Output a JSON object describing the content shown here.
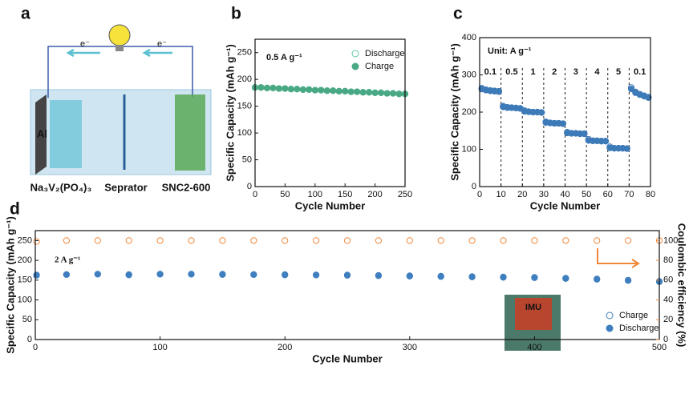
{
  "diagram": {
    "panel_label": "a",
    "electron_left": "e⁻",
    "electron_right": "e⁻",
    "collector": "Al",
    "cathode": "Na₃V₂(PO₄)₃",
    "separator": "Seprator",
    "anode": "SNC2-600"
  },
  "chart_data": [
    {
      "type": "scatter",
      "panel_label": "b",
      "note": "0.5 A g⁻¹",
      "x_label": "Cycle Number",
      "y_label": "Specific Capacity (mAh g⁻¹)",
      "xlim": [
        0,
        250
      ],
      "xticks": [
        0,
        50,
        100,
        150,
        200,
        250
      ],
      "ylim": [
        0,
        275
      ],
      "yticks": [
        0,
        50,
        100,
        150,
        200,
        250
      ],
      "legend": "upper right",
      "x": [
        0,
        10,
        20,
        30,
        40,
        50,
        60,
        70,
        80,
        90,
        100,
        110,
        120,
        130,
        140,
        150,
        160,
        170,
        180,
        190,
        200,
        210,
        220,
        230,
        240,
        250
      ],
      "series": [
        {
          "name": "Discharge",
          "color": "#5cc79f",
          "marker_fill": "hollow",
          "values": [
            185,
            185,
            184,
            184,
            183,
            183,
            182,
            182,
            181,
            181,
            180,
            180,
            179,
            179,
            178,
            178,
            177,
            177,
            176,
            176,
            175,
            175,
            174,
            174,
            173,
            173
          ]
        },
        {
          "name": "Charge",
          "color": "#4aa985",
          "marker_fill": "filled",
          "values": [
            185,
            185,
            184,
            184,
            183,
            183,
            182,
            182,
            181,
            181,
            180,
            180,
            179,
            179,
            178,
            178,
            177,
            177,
            176,
            176,
            175,
            175,
            174,
            174,
            173,
            173
          ]
        }
      ]
    },
    {
      "type": "scatter",
      "panel_label": "c",
      "note": "Unit: A g⁻¹",
      "segment_labels": [
        "0.1",
        "0.5",
        "1",
        "2",
        "3",
        "4",
        "5",
        "0.1"
      ],
      "x_label": "Cycle Number",
      "y_label": "Specific Capacity (mAh g⁻¹)",
      "xlim": [
        0,
        80
      ],
      "xticks": [
        0,
        10,
        20,
        30,
        40,
        50,
        60,
        70,
        80
      ],
      "ylim": [
        0,
        400
      ],
      "yticks": [
        0,
        100,
        200,
        300,
        400
      ],
      "x": [
        1,
        3,
        5,
        7,
        9,
        11,
        13,
        15,
        17,
        19,
        21,
        23,
        25,
        27,
        29,
        31,
        33,
        35,
        37,
        39,
        41,
        43,
        45,
        47,
        49,
        51,
        53,
        55,
        57,
        59,
        61,
        63,
        65,
        67,
        69,
        71,
        73,
        75,
        77,
        79
      ],
      "series": [
        {
          "name": "Discharge",
          "color": "#3d7ab8",
          "marker_fill": "hollow",
          "values": [
            264,
            260,
            258,
            257,
            256,
            216,
            213,
            212,
            211,
            210,
            204,
            201,
            200,
            200,
            199,
            174,
            171,
            170,
            170,
            169,
            146,
            143,
            143,
            142,
            142,
            127,
            123,
            123,
            122,
            122,
            107,
            103,
            103,
            103,
            102,
            266,
            254,
            248,
            244,
            240
          ]
        },
        {
          "name": "Charge",
          "color": "#3d7ab8",
          "marker_fill": "filled",
          "values": [
            262,
            259,
            257,
            256,
            255,
            214,
            212,
            212,
            211,
            210,
            202,
            201,
            200,
            200,
            199,
            172,
            171,
            170,
            170,
            169,
            144,
            143,
            143,
            142,
            142,
            124,
            123,
            123,
            122,
            122,
            104,
            103,
            103,
            103,
            102,
            262,
            252,
            247,
            243,
            239
          ]
        }
      ]
    },
    {
      "type": "scatter",
      "panel_label": "d",
      "note": "2 A g⁻¹",
      "inset_text": "IMU",
      "x_label": "Cycle Number",
      "y_label": "Specific Capacity (mAh g⁻¹)",
      "y2_label": "Coulombic efficiency (%)",
      "xlim": [
        0,
        500
      ],
      "xticks": [
        0,
        100,
        200,
        300,
        400,
        500
      ],
      "ylim": [
        0,
        275
      ],
      "yticks": [
        0,
        50,
        100,
        150,
        200,
        250
      ],
      "y2lim": [
        0,
        110
      ],
      "y2ticks": [
        0,
        20,
        40,
        60,
        80,
        100
      ],
      "legend": "lower right",
      "x": [
        1,
        25,
        50,
        75,
        100,
        125,
        150,
        175,
        200,
        225,
        250,
        275,
        300,
        325,
        350,
        375,
        400,
        425,
        450,
        475,
        500
      ],
      "series": [
        {
          "name": "Charge",
          "color": "#3f7fc0",
          "marker_fill": "hollow",
          "values": [
            163,
            164,
            165,
            164,
            165,
            165,
            165,
            164,
            164,
            163,
            163,
            162,
            161,
            160,
            159,
            158,
            157,
            155,
            153,
            150,
            147
          ]
        },
        {
          "name": "Discharge",
          "color": "#3f7fc0",
          "marker_fill": "filled",
          "values": [
            162,
            164,
            165,
            163,
            165,
            165,
            164,
            164,
            163,
            163,
            162,
            161,
            160,
            159,
            158,
            157,
            156,
            154,
            152,
            149,
            146
          ]
        },
        {
          "name": "Coulombic efficiency",
          "color": "#f0883a",
          "marker_fill": "hollow",
          "axis": "y2",
          "values": [
            99,
            100,
            100,
            100,
            100,
            100,
            100,
            100,
            100,
            100,
            100,
            100,
            100,
            100,
            100,
            100,
            100,
            100,
            100,
            100,
            100
          ]
        }
      ]
    }
  ]
}
